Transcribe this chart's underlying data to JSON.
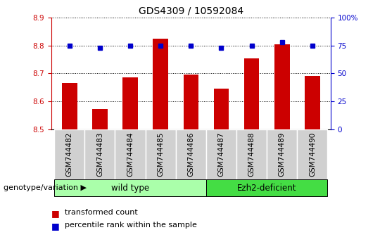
{
  "title": "GDS4309 / 10592084",
  "samples": [
    "GSM744482",
    "GSM744483",
    "GSM744484",
    "GSM744485",
    "GSM744486",
    "GSM744487",
    "GSM744488",
    "GSM744489",
    "GSM744490"
  ],
  "transformed_counts": [
    8.665,
    8.572,
    8.685,
    8.825,
    8.695,
    8.645,
    8.755,
    8.805,
    8.69
  ],
  "percentile_ranks": [
    75,
    73,
    75,
    75,
    75,
    73,
    75,
    78,
    75
  ],
  "ylim_left": [
    8.5,
    8.9
  ],
  "ylim_right": [
    0,
    100
  ],
  "yticks_left": [
    8.5,
    8.6,
    8.7,
    8.8,
    8.9
  ],
  "yticks_right": [
    0,
    25,
    50,
    75,
    100
  ],
  "bar_color": "#cc0000",
  "dot_color": "#0000cc",
  "bar_bottom": 8.5,
  "wt_count": 5,
  "ezh2_count": 4,
  "wt_label": "wild type",
  "ezh2_label": "Ezh2-deficient",
  "wt_color": "#aaffaa",
  "ezh2_color": "#44dd44",
  "sample_box_color": "#d0d0d0",
  "legend_bar_label": "transformed count",
  "legend_dot_label": "percentile rank within the sample",
  "group_label": "genotype/variation",
  "right_axis_color": "#0000cc",
  "left_axis_color": "#cc0000",
  "title_fontsize": 10,
  "tick_fontsize": 7.5,
  "legend_fontsize": 8
}
